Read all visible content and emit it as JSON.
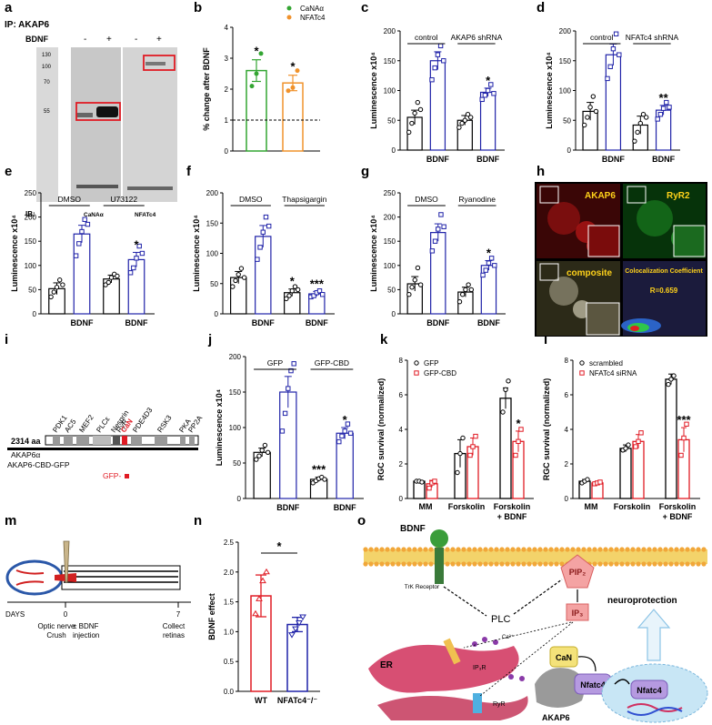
{
  "panel_letters": [
    "a",
    "b",
    "c",
    "d",
    "e",
    "f",
    "g",
    "h",
    "i",
    "j",
    "k",
    "l",
    "m",
    "n",
    "o"
  ],
  "a": {
    "ip_label": "IP: AKAP6",
    "bdnf_label": "BDNF",
    "lane_signs": [
      "-",
      "+",
      "-",
      "+"
    ],
    "mw_markers": [
      "130",
      "100",
      "70",
      "55"
    ],
    "ib_label": "IB:",
    "ib_targets": [
      "CaNAα",
      "NFATc4"
    ],
    "box_color": "#e01b24"
  },
  "b": {
    "chart_data": {
      "type": "bar",
      "categories": [
        "CaNAα",
        "NFATc4"
      ],
      "values": [
        2.6,
        2.2
      ],
      "errors": [
        0.35,
        0.25
      ],
      "points": [
        [
          2.1,
          2.5,
          3.15
        ],
        [
          1.95,
          2.05,
          2.6
        ]
      ],
      "ylabel": "% change after BDNF",
      "ylim": [
        0,
        4
      ],
      "yticks": [
        "0",
        "1",
        "2",
        "3",
        "4"
      ],
      "baseline": 1,
      "legend": [
        "CaNAα",
        "NFATc4"
      ],
      "colors": [
        "#33a532",
        "#f0922b"
      ],
      "significance": [
        "*",
        "*"
      ]
    }
  },
  "c": {
    "chart_data": {
      "type": "bar",
      "ylabel": "Luminescence x10⁴",
      "ylim": [
        0,
        200
      ],
      "yticks": [
        "0",
        "50",
        "100",
        "150",
        "200"
      ],
      "groups": [
        "control",
        "AKAP6 shRNA"
      ],
      "xlabels": [
        "BDNF",
        "BDNF"
      ],
      "values": [
        55,
        150,
        50,
        97
      ],
      "errors": [
        12,
        15,
        8,
        7
      ],
      "points": [
        [
          30,
          45,
          62,
          80,
          68
        ],
        [
          118,
          138,
          160,
          175,
          150
        ],
        [
          38,
          45,
          50,
          60,
          55
        ],
        [
          85,
          92,
          100,
          110,
          95
        ]
      ],
      "significance": [
        "",
        "",
        "",
        "*"
      ]
    }
  },
  "d": {
    "chart_data": {
      "type": "bar",
      "ylabel": "Luminescence x10⁴",
      "ylim": [
        0,
        200
      ],
      "yticks": [
        "0",
        "50",
        "100",
        "150",
        "200"
      ],
      "groups": [
        "control",
        "NFATc4 shRNA"
      ],
      "xlabels": [
        "BDNF",
        "BDNF"
      ],
      "values": [
        65,
        160,
        42,
        67
      ],
      "errors": [
        15,
        18,
        15,
        8
      ],
      "points": [
        [
          42,
          55,
          72,
          90,
          65
        ],
        [
          120,
          140,
          170,
          195,
          160
        ],
        [
          15,
          30,
          45,
          60,
          55
        ],
        [
          52,
          60,
          70,
          80,
          72
        ]
      ],
      "significance": [
        "",
        "",
        "",
        "**"
      ]
    }
  },
  "e": {
    "chart_data": {
      "type": "bar",
      "ylabel": "Luminescence x10⁴",
      "ylim": [
        0,
        250
      ],
      "yticks": [
        "0",
        "50",
        "100",
        "150",
        "200",
        "250"
      ],
      "groups": [
        "DMSO",
        "U73122"
      ],
      "xlabels": [
        "BDNF",
        "BDNF"
      ],
      "values": [
        52,
        165,
        72,
        112
      ],
      "errors": [
        12,
        18,
        8,
        15
      ],
      "points": [
        [
          35,
          45,
          55,
          70,
          60
        ],
        [
          120,
          145,
          170,
          195,
          185
        ],
        [
          60,
          65,
          75,
          82,
          78
        ],
        [
          85,
          95,
          115,
          140,
          125
        ]
      ],
      "significance": [
        "",
        "",
        "",
        "*"
      ]
    }
  },
  "f": {
    "chart_data": {
      "type": "bar",
      "ylabel": "Luminescence x10⁴",
      "ylim": [
        0,
        200
      ],
      "yticks": [
        "0",
        "50",
        "100",
        "150",
        "200"
      ],
      "groups": [
        "DMSO",
        "Thapsigargin"
      ],
      "xlabels": [
        "BDNF",
        "BDNF"
      ],
      "values": [
        60,
        128,
        35,
        33
      ],
      "errors": [
        10,
        18,
        6,
        4
      ],
      "points": [
        [
          45,
          55,
          65,
          75,
          60
        ],
        [
          90,
          110,
          135,
          160,
          145
        ],
        [
          25,
          30,
          38,
          45,
          40
        ],
        [
          28,
          30,
          35,
          38,
          32
        ]
      ],
      "significance": [
        "",
        "",
        "*",
        "***"
      ]
    }
  },
  "g": {
    "chart_data": {
      "type": "bar",
      "ylabel": "Luminescence x10⁴",
      "ylim": [
        0,
        250
      ],
      "yticks": [
        "0",
        "50",
        "100",
        "150",
        "200",
        "250"
      ],
      "groups": [
        "DMSO",
        "Ryanodine"
      ],
      "xlabels": [
        "BDNF",
        "BDNF"
      ],
      "values": [
        62,
        168,
        45,
        100
      ],
      "errors": [
        15,
        18,
        10,
        10
      ],
      "points": [
        [
          40,
          55,
          70,
          95,
          60
        ],
        [
          130,
          150,
          175,
          205,
          180
        ],
        [
          25,
          40,
          50,
          60,
          50
        ],
        [
          80,
          90,
          105,
          115,
          100
        ]
      ],
      "significance": [
        "",
        "",
        "",
        "*"
      ]
    }
  },
  "h": {
    "labels": [
      "AKAP6",
      "RyR2",
      "composite"
    ],
    "coloc_title": "Colocalization Coefficient",
    "coloc_value": "R=0.659"
  },
  "i": {
    "length_label": "2314 aa",
    "construct_1": "AKAP6α",
    "construct_2": "AKAP6-CBD-GFP",
    "gfp_label": "GFP-",
    "domains": [
      "PDK1",
      "AC5",
      "MEF2",
      "PLCε",
      "Nesprin",
      "RyR",
      "CaN",
      "PDE4D3",
      "RSK3",
      "PKA",
      "PP2A"
    ]
  },
  "j": {
    "chart_data": {
      "type": "bar",
      "ylabel": "Luminescence x10⁴",
      "ylim": [
        0,
        200
      ],
      "yticks": [
        "0",
        "50",
        "100",
        "150",
        "200"
      ],
      "groups": [
        "GFP",
        "GFP-CBD"
      ],
      "xlabels": [
        "BDNF",
        "BDNF"
      ],
      "values": [
        65,
        150,
        27,
        92
      ],
      "errors": [
        6,
        22,
        3,
        8
      ],
      "points": [
        [
          55,
          60,
          68,
          75,
          65
        ],
        [
          95,
          120,
          155,
          180,
          190
        ],
        [
          22,
          25,
          28,
          30,
          27
        ],
        [
          80,
          88,
          95,
          105,
          92
        ]
      ],
      "significance": [
        "",
        "",
        "***",
        "*"
      ]
    }
  },
  "k": {
    "chart_data": {
      "type": "bar",
      "ylabel": "RGC survival (normalized)",
      "ylim": [
        0,
        8
      ],
      "yticks": [
        "0",
        "2",
        "4",
        "6",
        "8"
      ],
      "categories": [
        "MM",
        "Forskolin",
        "Forskolin + BDNF"
      ],
      "series": [
        {
          "name": "GFP",
          "values": [
            1.0,
            2.6,
            5.8
          ],
          "errors": [
            0.05,
            0.8,
            0.6
          ],
          "points": [
            [
              1.0,
              1.0,
              0.95
            ],
            [
              1.5,
              2.6,
              3.5
            ],
            [
              5.0,
              6.3,
              6.8
            ]
          ]
        },
        {
          "name": "GFP-CBD",
          "values": [
            0.85,
            3.0,
            3.3
          ],
          "errors": [
            0.2,
            0.5,
            0.6
          ],
          "points": [
            [
              0.6,
              0.9,
              1.0
            ],
            [
              2.5,
              3.0,
              3.6
            ],
            [
              2.5,
              3.3,
              4.0
            ]
          ]
        }
      ],
      "colors": [
        "#000000",
        "#e01b24"
      ],
      "significance": [
        "",
        "",
        "*"
      ]
    }
  },
  "l": {
    "chart_data": {
      "type": "bar",
      "ylabel": "RGC survival (normalized)",
      "ylim": [
        0,
        8
      ],
      "yticks": [
        "0",
        "2",
        "4",
        "6",
        "8"
      ],
      "categories": [
        "MM",
        "Forskolin",
        "Forskolin + BDNF"
      ],
      "series": [
        {
          "name": "scrambled",
          "values": [
            1.0,
            2.9,
            6.9
          ],
          "errors": [
            0.1,
            0.2,
            0.3
          ],
          "points": [
            [
              0.9,
              1.0,
              1.1
            ],
            [
              2.8,
              2.9,
              3.1
            ],
            [
              6.6,
              6.9,
              7.1
            ]
          ]
        },
        {
          "name": "NFATc4 siRNA",
          "values": [
            0.9,
            3.3,
            3.4
          ],
          "errors": [
            0.1,
            0.4,
            0.7
          ],
          "points": [
            [
              0.85,
              0.9,
              0.95
            ],
            [
              3.0,
              3.3,
              3.8
            ],
            [
              2.5,
              3.5,
              4.3
            ]
          ]
        }
      ],
      "colors": [
        "#000000",
        "#e01b24"
      ],
      "significance": [
        "",
        "",
        "***"
      ]
    }
  },
  "m": {
    "days_label": "DAYS",
    "day0": "0",
    "day7": "7",
    "event1": "Optic nerve Crush",
    "event2": "± BDNF injection",
    "event3": "Collect retinas"
  },
  "n": {
    "chart_data": {
      "type": "bar",
      "ylabel": "BDNF effect",
      "ylim": [
        0,
        2.5
      ],
      "yticks": [
        "0.0",
        "0.5",
        "1.0",
        "1.5",
        "2.0",
        "2.5"
      ],
      "categories": [
        "WT",
        "NFATc4⁻/⁻"
      ],
      "values": [
        1.6,
        1.12
      ],
      "errors": [
        0.35,
        0.12
      ],
      "points": [
        [
          1.3,
          1.55,
          1.85,
          2.0
        ],
        [
          0.95,
          1.05,
          1.15,
          1.25
        ]
      ],
      "colors": [
        "#e01b24",
        "#1f22a8"
      ],
      "significance": "*"
    }
  },
  "o": {
    "bdnf": "BDNF",
    "trk": "TrK Receptor",
    "plc": "PLC",
    "pip2": "PIP₂",
    "ip3": "IP₃",
    "er": "ER",
    "ip3r": "IP₃R",
    "ryr": "RyR",
    "can": "CaN",
    "nfatc4": "Nfatc4",
    "akap6": "AKAP6",
    "neuroprotection": "neuroprotection",
    "ca": "Ca²⁺"
  }
}
